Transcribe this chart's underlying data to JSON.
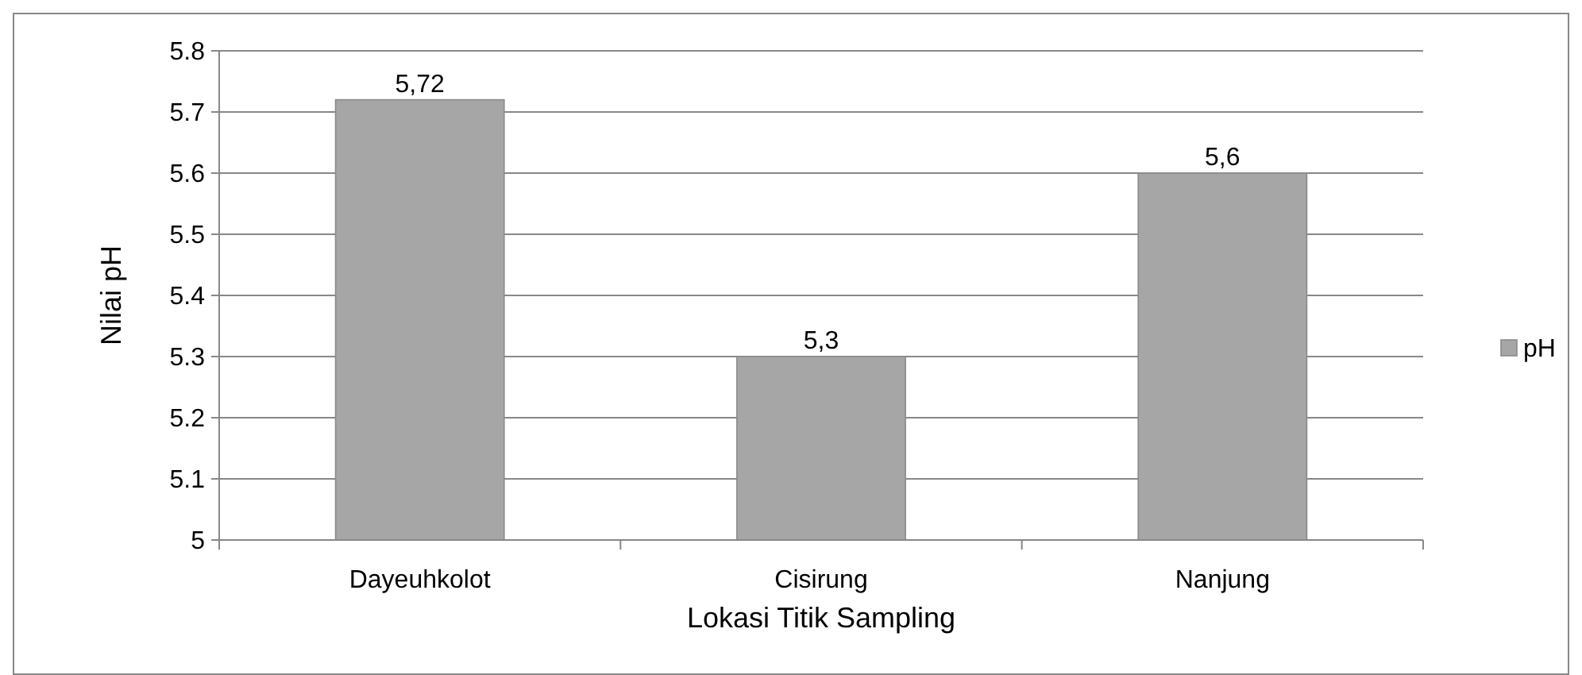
{
  "chart_data": {
    "type": "bar",
    "xlabel": "Lokasi Titik Sampling",
    "ylabel": "Nilai pH",
    "categories": [
      "Dayeuhkolot",
      "Cisirung",
      "Nanjung"
    ],
    "series": [
      {
        "name": "pH",
        "color": "#a6a6a6",
        "values": [
          5.72,
          5.3,
          5.6
        ],
        "value_labels": [
          "5,72",
          "5,3",
          "5,6"
        ]
      }
    ],
    "ylim": [
      5,
      5.8
    ],
    "yticks": [
      5,
      5.1,
      5.2,
      5.3,
      5.4,
      5.5,
      5.6,
      5.7,
      5.8
    ],
    "grid": "y",
    "legend": "right"
  }
}
